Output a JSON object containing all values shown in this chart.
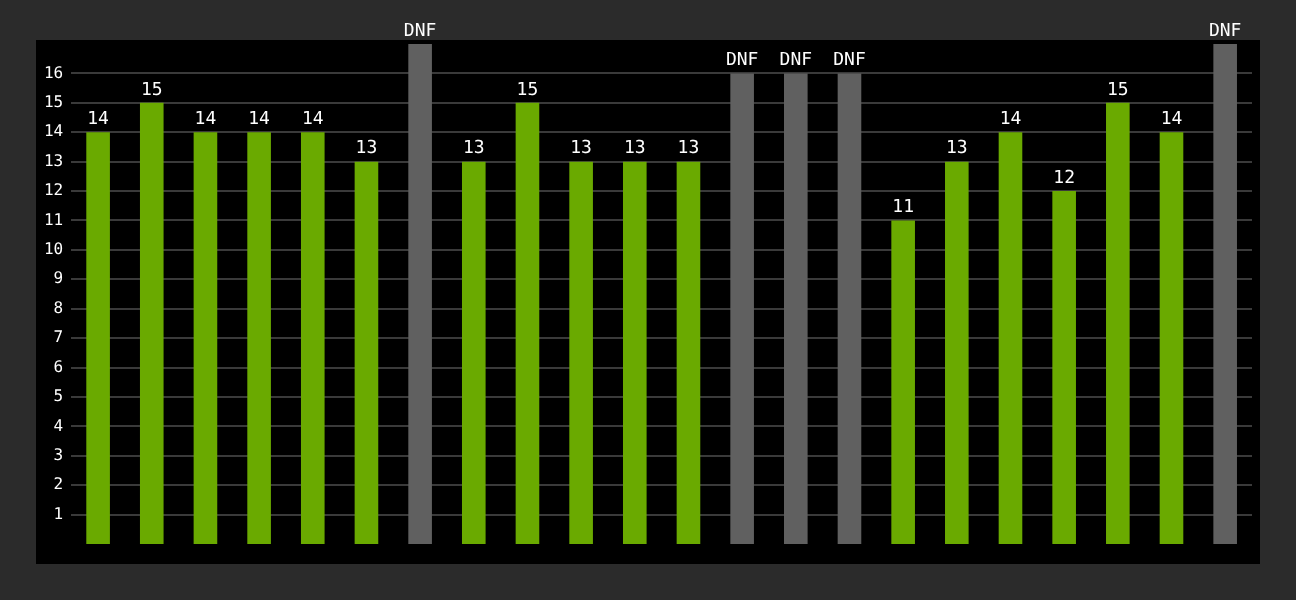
{
  "chart_data": {
    "type": "bar",
    "categories": [
      null,
      null,
      null,
      null,
      null,
      null,
      null,
      null,
      null,
      null,
      null,
      null,
      null,
      null,
      null,
      null,
      null,
      null,
      null,
      null,
      null,
      null
    ],
    "values": [
      14,
      15,
      14,
      14,
      14,
      13,
      17,
      13,
      15,
      13,
      13,
      13,
      16,
      16,
      16,
      11,
      13,
      14,
      12,
      15,
      14,
      17
    ],
    "colors": [
      "#6aaa00",
      "#6aaa00",
      "#6aaa00",
      "#6aaa00",
      "#6aaa00",
      "#6aaa00",
      "#606060",
      "#6aaa00",
      "#6aaa00",
      "#6aaa00",
      "#6aaa00",
      "#6aaa00",
      "#606060",
      "#606060",
      "#606060",
      "#6aaa00",
      "#6aaa00",
      "#6aaa00",
      "#6aaa00",
      "#6aaa00",
      "#6aaa00",
      "#606060"
    ],
    "value_labels": [
      "14",
      "15",
      "14",
      "14",
      "14",
      "13",
      "DNF",
      "13",
      "15",
      "13",
      "13",
      "13",
      "DNF",
      "DNF",
      "DNF",
      "11",
      "13",
      "14",
      "12",
      "15",
      "14",
      "DNF"
    ],
    "ylim": [
      0,
      17
    ],
    "yticks": [
      1,
      2,
      3,
      4,
      5,
      6,
      7,
      8,
      9,
      10,
      11,
      12,
      13,
      14,
      15,
      16
    ],
    "grid": "y"
  }
}
